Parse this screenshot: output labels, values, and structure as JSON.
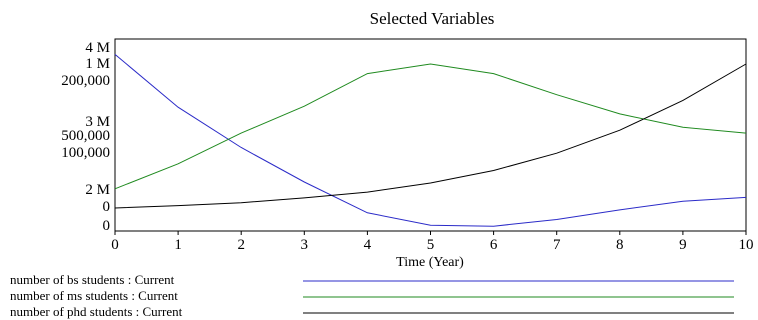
{
  "chart_data": {
    "type": "line",
    "title": "Selected Variables",
    "xlabel": "Time (Year)",
    "x": [
      0,
      1,
      2,
      3,
      4,
      5,
      6,
      7,
      8,
      9,
      10
    ],
    "xlim": [
      0,
      10
    ],
    "xticks": [
      "0",
      "1",
      "2",
      "3",
      "4",
      "5",
      "6",
      "7",
      "8",
      "9",
      "10"
    ],
    "axes": [
      {
        "ticks": [
          "4 M",
          "3 M",
          "2 M"
        ],
        "range": [
          2000000,
          4000000
        ]
      },
      {
        "ticks": [
          "1 M",
          "500,000",
          "0"
        ],
        "range": [
          0,
          1000000
        ]
      },
      {
        "ticks": [
          "200,000",
          "100,000",
          "0"
        ],
        "range": [
          0,
          200000
        ]
      }
    ],
    "grid": false,
    "legend_position": "bottom",
    "series": [
      {
        "name": "number of bs students : Current",
        "color": "#2b2bc8",
        "axis": 0,
        "values": [
          3840000,
          3290000,
          2870000,
          2510000,
          2190000,
          2060000,
          2050000,
          2120000,
          2220000,
          2310000,
          2350000
        ]
      },
      {
        "name": "number of ms students : Current",
        "color": "#1f8a1f",
        "axis": 1,
        "values": [
          220000,
          350000,
          510000,
          650000,
          820000,
          870000,
          820000,
          710000,
          610000,
          540000,
          510000
        ]
      },
      {
        "name": "number of phd students : Current",
        "color": "#000000",
        "axis": 2,
        "values": [
          24000,
          26500,
          29500,
          34500,
          40500,
          50000,
          63000,
          81000,
          105000,
          136000,
          174000
        ]
      }
    ]
  }
}
